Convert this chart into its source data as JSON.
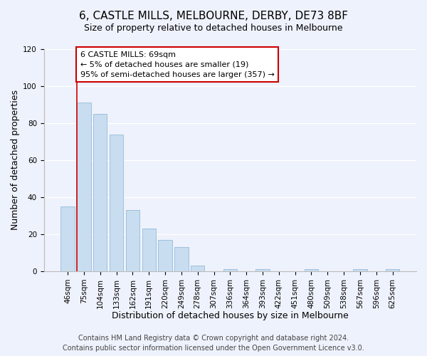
{
  "title": "6, CASTLE MILLS, MELBOURNE, DERBY, DE73 8BF",
  "subtitle": "Size of property relative to detached houses in Melbourne",
  "xlabel": "Distribution of detached houses by size in Melbourne",
  "ylabel": "Number of detached properties",
  "bar_labels": [
    "46sqm",
    "75sqm",
    "104sqm",
    "133sqm",
    "162sqm",
    "191sqm",
    "220sqm",
    "249sqm",
    "278sqm",
    "307sqm",
    "336sqm",
    "364sqm",
    "393sqm",
    "422sqm",
    "451sqm",
    "480sqm",
    "509sqm",
    "538sqm",
    "567sqm",
    "596sqm",
    "625sqm"
  ],
  "bar_values": [
    35,
    91,
    85,
    74,
    33,
    23,
    17,
    13,
    3,
    0,
    1,
    0,
    1,
    0,
    0,
    1,
    0,
    0,
    1,
    0,
    1
  ],
  "bar_color": "#c8ddf0",
  "bar_edge_color": "#a0c0dc",
  "ylim": [
    0,
    120
  ],
  "yticks": [
    0,
    20,
    40,
    60,
    80,
    100,
    120
  ],
  "annotation_title": "6 CASTLE MILLS: 69sqm",
  "annotation_line1": "← 5% of detached houses are smaller (19)",
  "annotation_line2": "95% of semi-detached houses are larger (357) →",
  "annotation_box_color": "#ffffff",
  "annotation_box_edge": "#cc0000",
  "red_line_color": "#cc0000",
  "footer1": "Contains HM Land Registry data © Crown copyright and database right 2024.",
  "footer2": "Contains public sector information licensed under the Open Government Licence v3.0.",
  "title_fontsize": 11,
  "axis_label_fontsize": 9,
  "tick_fontsize": 7.5,
  "annotation_fontsize": 8,
  "footer_fontsize": 7,
  "background_color": "#eef2fc"
}
